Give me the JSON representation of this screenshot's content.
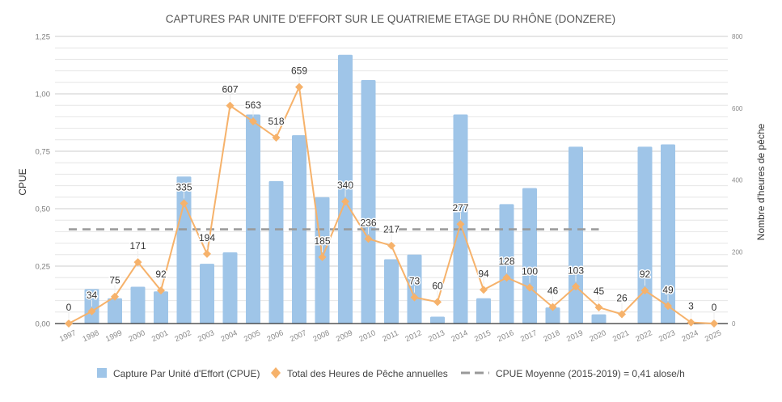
{
  "chart_data": {
    "type": "bar",
    "title": "CAPTURES PAR UNITE D'EFFORT SUR LE QUATRIEME ETAGE DU RHÔNE (DONZERE)",
    "xlabel": "",
    "ylabel": "CPUE",
    "y2label": "Nombre d'heures de pêche",
    "ylim": [
      0,
      1.25
    ],
    "y2lim": [
      0,
      800
    ],
    "yticks": [
      "0,00",
      "0,25",
      "0,50",
      "0,75",
      "1,00",
      "1,25"
    ],
    "y2ticks": [
      "0",
      "200",
      "400",
      "600",
      "800"
    ],
    "grid": true,
    "legend_position": "bottom",
    "categories": [
      "1997",
      "1998",
      "1999",
      "2000",
      "2001",
      "2002",
      "2003",
      "2004",
      "2005",
      "2006",
      "2007",
      "2008",
      "2009",
      "2010",
      "2011",
      "2012",
      "2013",
      "2014",
      "2015",
      "2016",
      "2017",
      "2018",
      "2019",
      "2020",
      "2021",
      "2022",
      "2023",
      "2024",
      "2025"
    ],
    "series": [
      {
        "name": "Capture Par Unité d'Effort (CPUE)",
        "type": "bar",
        "axis": "left",
        "color": "#9fc5e8",
        "values": [
          0,
          0.15,
          0.11,
          0.16,
          0.14,
          0.64,
          0.26,
          0.31,
          0.91,
          0.62,
          0.82,
          0.55,
          1.17,
          1.06,
          0.28,
          0.3,
          0.03,
          0.91,
          0.11,
          0.52,
          0.59,
          0.07,
          0.77,
          0.04,
          0,
          0.77,
          0.78,
          0,
          0
        ]
      },
      {
        "name": "Total des Heures de Pêche annuelles",
        "type": "line",
        "axis": "right",
        "color": "#f6b26b",
        "marker": "diamond",
        "values": [
          0,
          34,
          75,
          171,
          92,
          335,
          194,
          607,
          563,
          518,
          659,
          185,
          340,
          236,
          217,
          73,
          60,
          277,
          94,
          128,
          100,
          46,
          103,
          45,
          26,
          92,
          49,
          3,
          0
        ]
      },
      {
        "name": "CPUE Moyenne (2015-2019) = 0,41 alose/h",
        "type": "dashed-line",
        "axis": "left",
        "color": "#999999",
        "value": 0.41,
        "from": "1997",
        "to": "2020"
      }
    ]
  }
}
